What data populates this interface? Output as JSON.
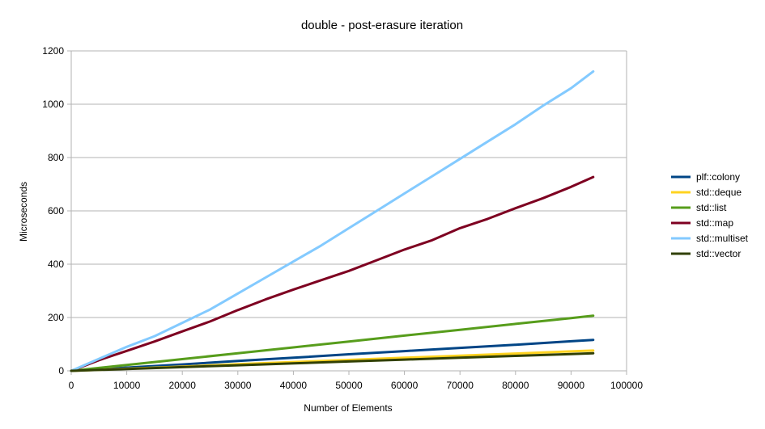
{
  "chart_data": {
    "type": "line",
    "title": "double - post-erasure iteration",
    "xlabel": "Number of Elements",
    "ylabel": "Microseconds",
    "xlim": [
      0,
      100000
    ],
    "ylim": [
      0,
      1200
    ],
    "xticks": [
      0,
      10000,
      20000,
      30000,
      40000,
      50000,
      60000,
      70000,
      80000,
      90000,
      100000
    ],
    "yticks": [
      0,
      200,
      400,
      600,
      800,
      1000,
      1200
    ],
    "grid": true,
    "legend_position": "right",
    "series": [
      {
        "name": "plf::colony",
        "color": "#004586",
        "points": [
          [
            0,
            0
          ],
          [
            10000,
            12
          ],
          [
            20000,
            24
          ],
          [
            30000,
            37
          ],
          [
            40000,
            49
          ],
          [
            50000,
            62
          ],
          [
            60000,
            74
          ],
          [
            70000,
            86
          ],
          [
            80000,
            98
          ],
          [
            90000,
            111
          ],
          [
            94000,
            116
          ]
        ]
      },
      {
        "name": "std::deque",
        "color": "#ffd320",
        "points": [
          [
            0,
            0
          ],
          [
            10000,
            8
          ],
          [
            20000,
            16
          ],
          [
            30000,
            25
          ],
          [
            40000,
            33
          ],
          [
            50000,
            41
          ],
          [
            60000,
            49
          ],
          [
            70000,
            57
          ],
          [
            80000,
            65
          ],
          [
            90000,
            73
          ],
          [
            94000,
            76
          ]
        ]
      },
      {
        "name": "std::list",
        "color": "#579d1c",
        "points": [
          [
            0,
            0
          ],
          [
            10000,
            22
          ],
          [
            20000,
            44
          ],
          [
            30000,
            66
          ],
          [
            40000,
            88
          ],
          [
            50000,
            110
          ],
          [
            60000,
            132
          ],
          [
            70000,
            154
          ],
          [
            80000,
            176
          ],
          [
            90000,
            198
          ],
          [
            94000,
            207
          ]
        ]
      },
      {
        "name": "std::map",
        "color": "#7e0021",
        "points": [
          [
            0,
            0
          ],
          [
            5000,
            40
          ],
          [
            10000,
            75
          ],
          [
            15000,
            110
          ],
          [
            20000,
            148
          ],
          [
            25000,
            185
          ],
          [
            30000,
            228
          ],
          [
            35000,
            268
          ],
          [
            40000,
            305
          ],
          [
            45000,
            340
          ],
          [
            50000,
            375
          ],
          [
            55000,
            415
          ],
          [
            60000,
            455
          ],
          [
            65000,
            490
          ],
          [
            70000,
            535
          ],
          [
            75000,
            570
          ],
          [
            80000,
            610
          ],
          [
            85000,
            648
          ],
          [
            90000,
            690
          ],
          [
            94000,
            727
          ]
        ]
      },
      {
        "name": "std::multiset",
        "color": "#83caff",
        "points": [
          [
            0,
            0
          ],
          [
            5000,
            45
          ],
          [
            10000,
            90
          ],
          [
            15000,
            130
          ],
          [
            20000,
            180
          ],
          [
            25000,
            230
          ],
          [
            30000,
            290
          ],
          [
            35000,
            350
          ],
          [
            40000,
            410
          ],
          [
            45000,
            470
          ],
          [
            50000,
            535
          ],
          [
            55000,
            600
          ],
          [
            60000,
            665
          ],
          [
            65000,
            730
          ],
          [
            70000,
            795
          ],
          [
            75000,
            860
          ],
          [
            80000,
            925
          ],
          [
            85000,
            995
          ],
          [
            90000,
            1060
          ],
          [
            94000,
            1123
          ]
        ]
      },
      {
        "name": "std::vector",
        "color": "#314004",
        "points": [
          [
            0,
            0
          ],
          [
            10000,
            7
          ],
          [
            20000,
            14
          ],
          [
            30000,
            21
          ],
          [
            40000,
            28
          ],
          [
            50000,
            35
          ],
          [
            60000,
            42
          ],
          [
            70000,
            49
          ],
          [
            80000,
            56
          ],
          [
            90000,
            63
          ],
          [
            94000,
            66
          ]
        ]
      }
    ]
  }
}
